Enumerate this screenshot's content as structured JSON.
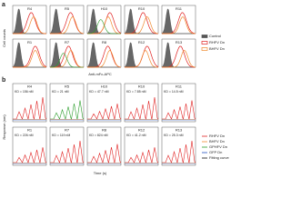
{
  "panel_a": {
    "label": "a",
    "y_label": "Cell counts",
    "x_label": "Anti-mFc-APC",
    "plots": [
      "R4",
      "R5",
      "H10",
      "R10",
      "R11",
      "R1",
      "R7",
      "R8",
      "R12",
      "R13"
    ],
    "legend": [
      {
        "name": "Control",
        "color": "#555555"
      },
      {
        "name": "RHFV Dn",
        "color": "#e02020"
      },
      {
        "name": "BHFV Dn",
        "color": "#f08a30"
      }
    ]
  },
  "panel_b": {
    "label": "b",
    "y_label": "Response (nm)",
    "x_label": "Time (s)",
    "plots": [
      {
        "title": "R4",
        "kd": "KD = 156 nM"
      },
      {
        "title": "R5",
        "kd": "KD = 21 nM"
      },
      {
        "title": "H10",
        "kd": "KD = 47.7 nM"
      },
      {
        "title": "R10",
        "kd": "KD = 7.85 nM"
      },
      {
        "title": "R11",
        "kd": "KD = 14.5 nM"
      },
      {
        "title": "R1",
        "kd": "KD = 226 nM"
      },
      {
        "title": "R7",
        "kd": "KD = 119 nM"
      },
      {
        "title": "R8",
        "kd": "KD = 824 nM"
      },
      {
        "title": "R12",
        "kd": "KD = 41.2 nM"
      },
      {
        "title": "R13",
        "kd": "KD = 25.3 nM"
      }
    ],
    "legend": [
      {
        "name": "RHFV Dn",
        "color": "#e02020"
      },
      {
        "name": "BHFV Dn",
        "color": "#f08a30"
      },
      {
        "name": "GPHFV Dn",
        "color": "#2a9d2a"
      },
      {
        "name": "GFP Dn",
        "color": "#2050c0"
      },
      {
        "name": "Fitting curve",
        "color": "#111111"
      }
    ]
  }
}
